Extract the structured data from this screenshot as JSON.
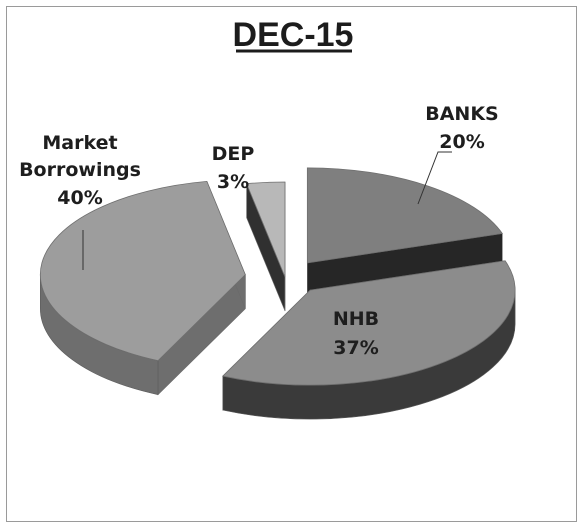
{
  "chart_data": {
    "type": "pie",
    "title": "DEC-15",
    "slices": [
      {
        "name": "BANKS",
        "value": 20,
        "label": "20%"
      },
      {
        "name": "NHB",
        "value": 37,
        "label": "37%"
      },
      {
        "name": "Market Borrowings",
        "value": 40,
        "label": "40%"
      },
      {
        "name": "DEP",
        "value": 3,
        "label": "3%"
      }
    ],
    "colors": {
      "BANKS": "#7f7f7f",
      "NHB": "#8c8c8c",
      "Market Borrowings": "#9d9d9d",
      "DEP": "#b8b8b8"
    },
    "side_colors": {
      "BANKS": "#262626",
      "NHB": "#3a3a3a",
      "Market Borrowings": "#6e6e6e",
      "DEP": "#303030"
    },
    "label_lines": {
      "market": [
        "Market",
        "Borrowings"
      ],
      "banks": [
        "BANKS"
      ],
      "nhb": [
        "NHB"
      ],
      "dep": [
        "DEP"
      ]
    }
  }
}
